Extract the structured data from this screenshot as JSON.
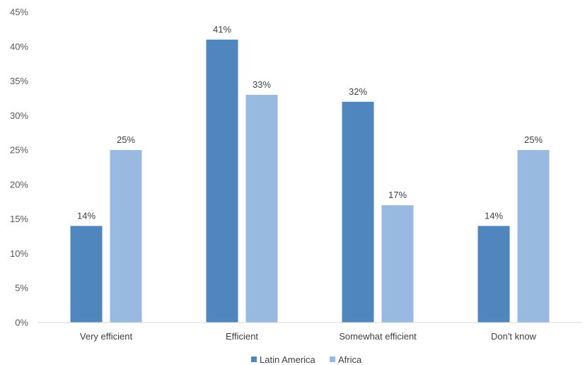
{
  "chart_data": {
    "type": "bar",
    "title": "",
    "xlabel": "",
    "ylabel": "",
    "categories": [
      "Very efficient",
      "Efficient",
      "Somewhat efficient",
      "Don't know"
    ],
    "series": [
      {
        "name": "Latin America",
        "values": [
          14,
          41,
          32,
          14
        ],
        "color": "#4e86bd"
      },
      {
        "name": "Africa",
        "values": [
          25,
          33,
          17,
          25
        ],
        "color": "#98b9e0"
      }
    ],
    "ylim": [
      0,
      45
    ],
    "yticks": [
      0,
      5,
      10,
      15,
      20,
      25,
      30,
      35,
      40,
      45
    ],
    "value_suffix": "%",
    "grid": false,
    "legend_position": "bottom"
  }
}
